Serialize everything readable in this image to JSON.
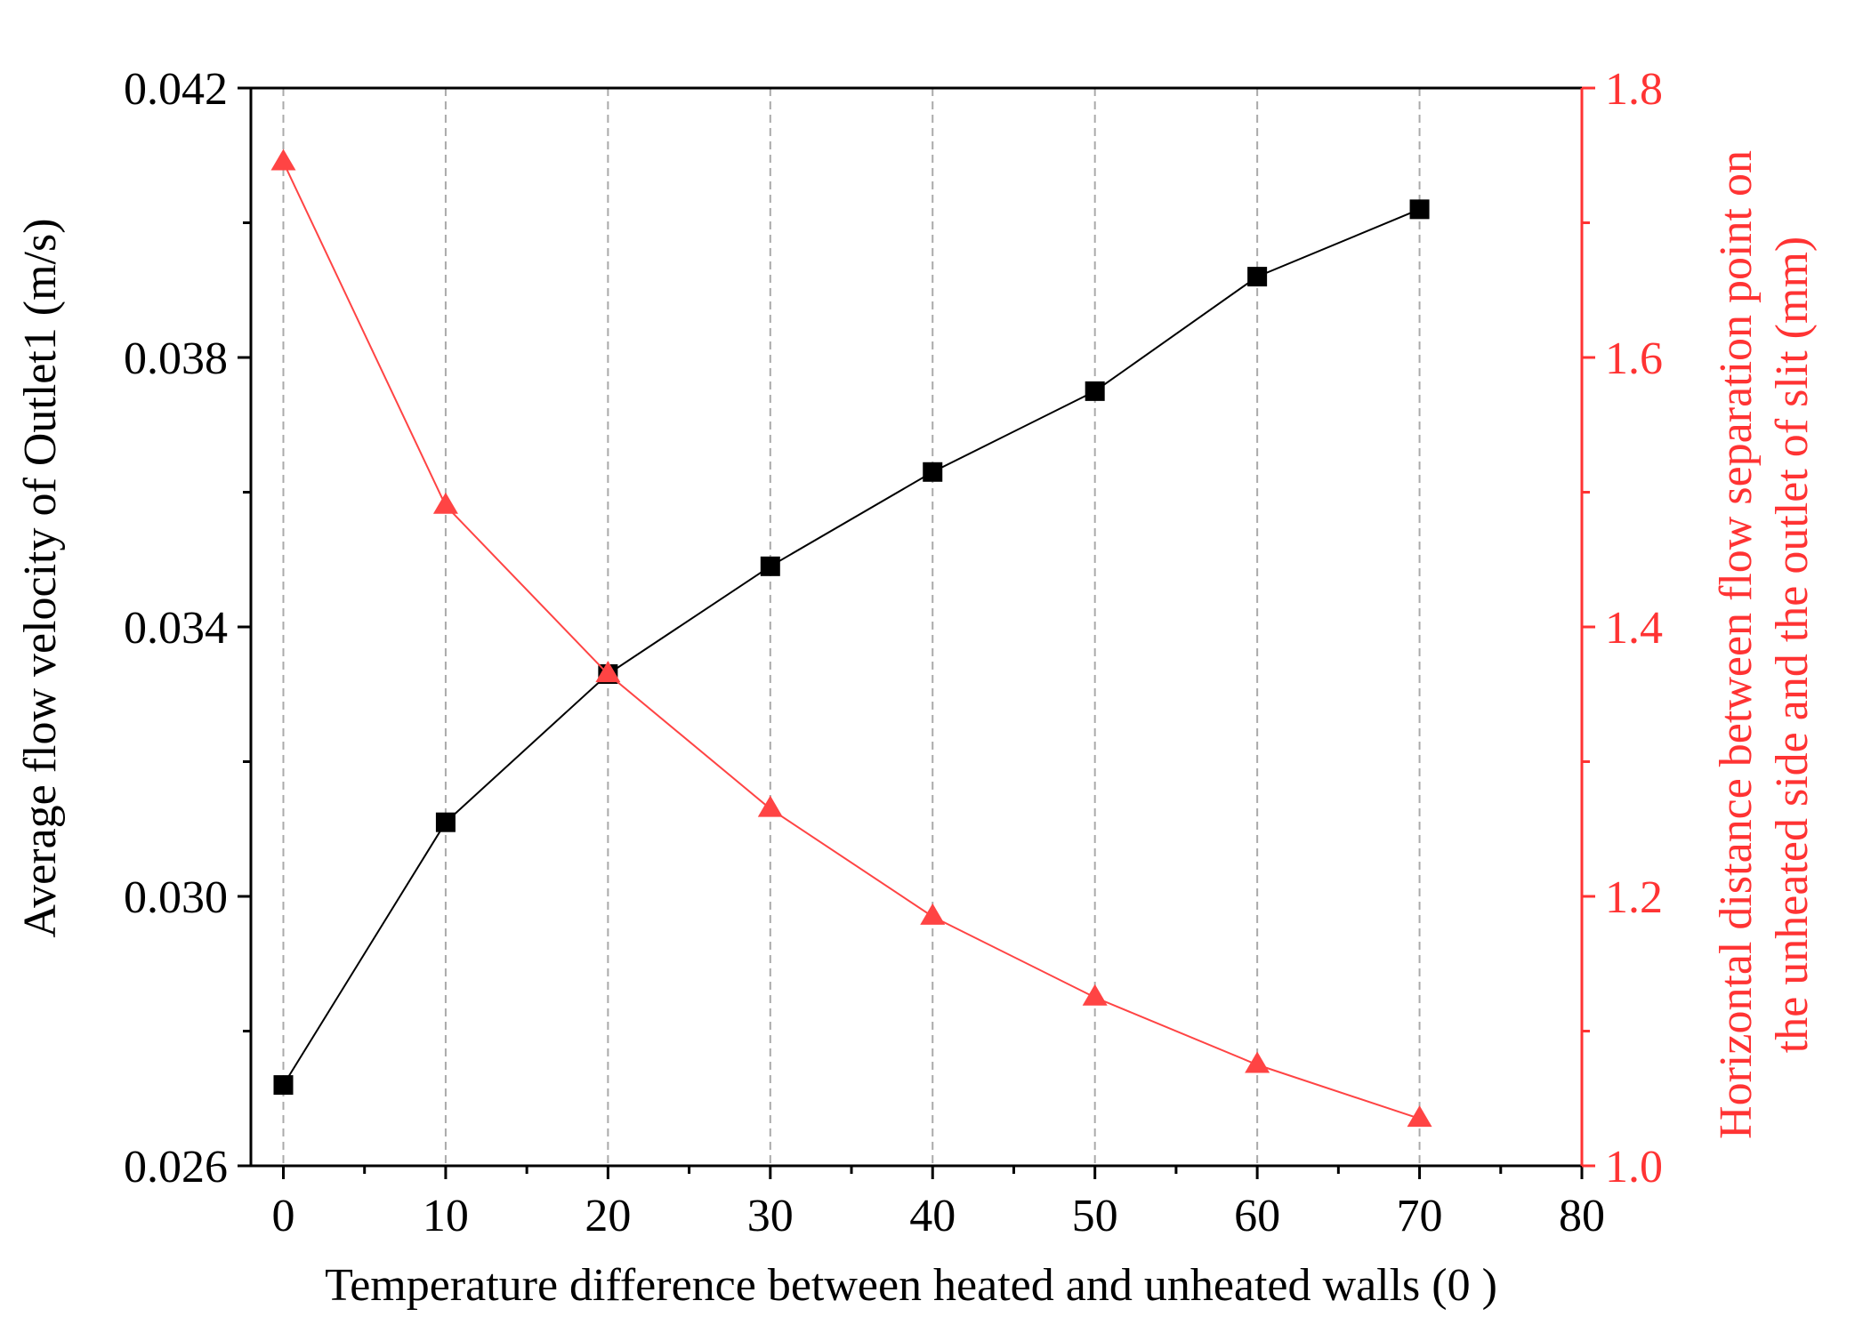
{
  "chart_data": {
    "type": "line",
    "xlabel": "Temperature difference between heated and unheated walls (0 )",
    "ylabel_left": "Average flow velocity of Outlet1  (m/s)",
    "ylabel_right_lines": [
      "Horizontal distance between flow separation point on",
      "the unheated side and the outlet of slit  (mm)"
    ],
    "xlim": [
      -2,
      80
    ],
    "ylim_left": [
      0.026,
      0.042
    ],
    "ylim_right": [
      1.0,
      1.8
    ],
    "x_ticks": [
      0,
      10,
      20,
      30,
      40,
      50,
      60,
      70,
      80
    ],
    "x_tick_labels": [
      "0",
      "10",
      "20",
      "30",
      "40",
      "50",
      "60",
      "70",
      "80"
    ],
    "y_left_ticks": [
      0.026,
      0.03,
      0.034,
      0.038,
      0.042
    ],
    "y_left_tick_labels": [
      "0.026",
      "0.030",
      "0.034",
      "0.038",
      "0.042"
    ],
    "y_right_ticks": [
      1.0,
      1.2,
      1.4,
      1.6,
      1.8
    ],
    "y_right_tick_labels": [
      "1.0",
      "1.2",
      "1.4",
      "1.6",
      "1.8"
    ],
    "grid": "vertical dashed at x ticks",
    "series": [
      {
        "name": "Average flow velocity of Outlet1",
        "axis": "left",
        "marker": "square",
        "color": "#000000",
        "x": [
          0,
          10,
          20,
          30,
          40,
          50,
          60,
          70
        ],
        "values": [
          0.0272,
          0.0311,
          0.0333,
          0.0349,
          0.0363,
          0.0375,
          0.0392,
          0.0402
        ]
      },
      {
        "name": "Horizontal distance between flow separation point and outlet of slit",
        "axis": "right",
        "marker": "triangle",
        "color": "#ff4444",
        "x": [
          0,
          10,
          20,
          30,
          40,
          50,
          60,
          70
        ],
        "values": [
          1.745,
          1.49,
          1.365,
          1.265,
          1.185,
          1.125,
          1.075,
          1.035
        ]
      }
    ]
  }
}
